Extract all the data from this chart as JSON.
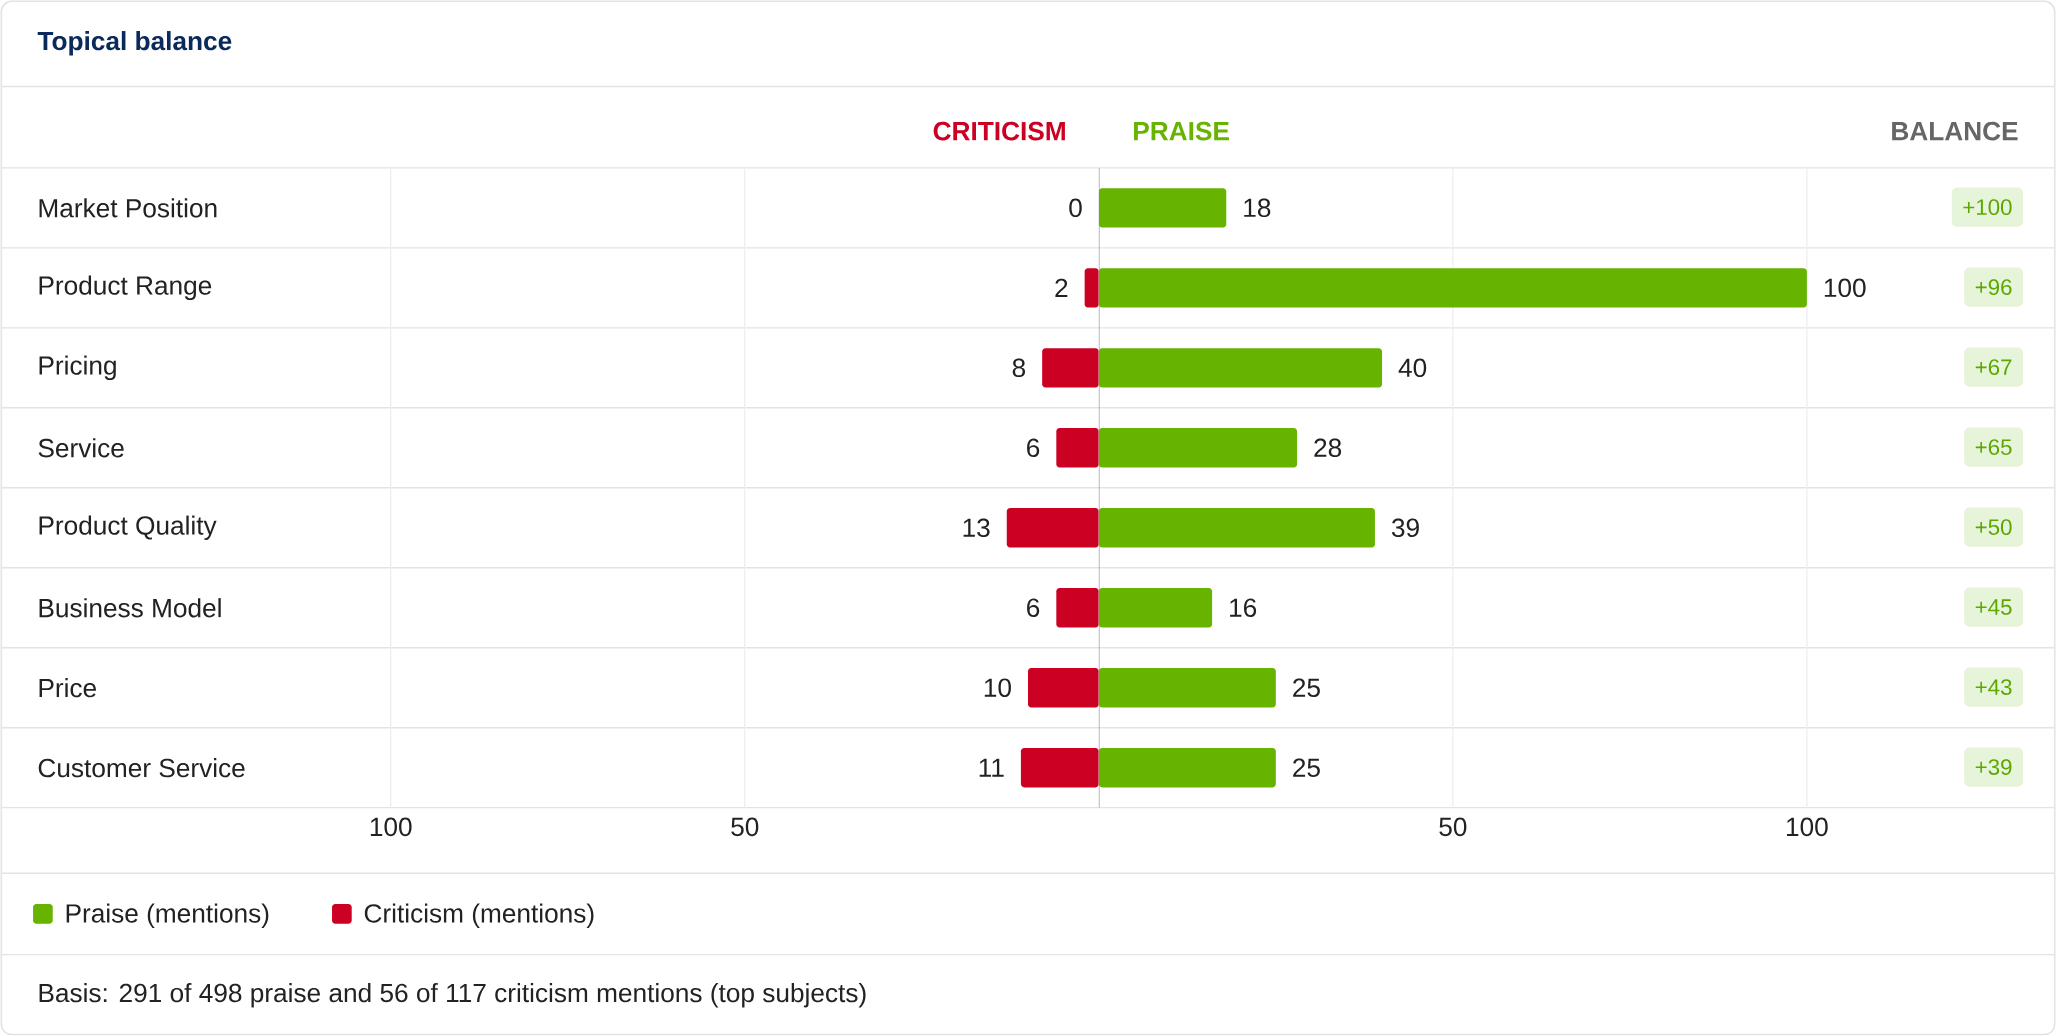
{
  "chart_data": [
    {
      "type": "bar",
      "orientation": "horizontal",
      "title": "Topical balance",
      "categories": [
        "Market Position",
        "Product Range",
        "Pricing",
        "Service",
        "Product Quality",
        "Business Model",
        "Price",
        "Customer Service"
      ],
      "series": [
        {
          "name": "Criticism (mentions)",
          "color": "#cc0022",
          "values": [
            0,
            2,
            8,
            6,
            13,
            6,
            10,
            11
          ],
          "value_labels": [
            "0",
            "2",
            "8",
            "6",
            "13",
            "6",
            "10",
            "11"
          ]
        }
      ],
      "xlim": [
        155,
        0
      ],
      "xticks": [
        100,
        50
      ],
      "grid": "x",
      "legend": "bottom left",
      "annotations": [
        "CRITICISM"
      ]
    },
    {
      "type": "bar",
      "orientation": "horizontal",
      "categories": [
        null,
        null,
        null,
        null,
        null,
        null,
        null,
        null
      ],
      "series": [
        {
          "name": "Praise (mentions)",
          "color": "#66b300",
          "values": [
            18,
            100,
            40,
            28,
            39,
            16,
            25,
            25
          ],
          "value_labels": [
            "18",
            "100",
            "40",
            "28",
            "39",
            "16",
            "25",
            "25"
          ]
        }
      ],
      "xlim": [
        0,
        135
      ],
      "xticks": [
        50,
        100
      ],
      "grid": "x",
      "legend": "bottom left",
      "tick_labels": "x",
      "annotations": [
        "PRAISE",
        "BALANCE",
        "+100",
        "+96",
        "+67",
        "+65",
        "+50",
        "+45",
        "+43",
        "+39",
        "Basis: 291 of 498 praise and 56 of 117 criticism mentions (top subjects)"
      ]
    }
  ]
}
